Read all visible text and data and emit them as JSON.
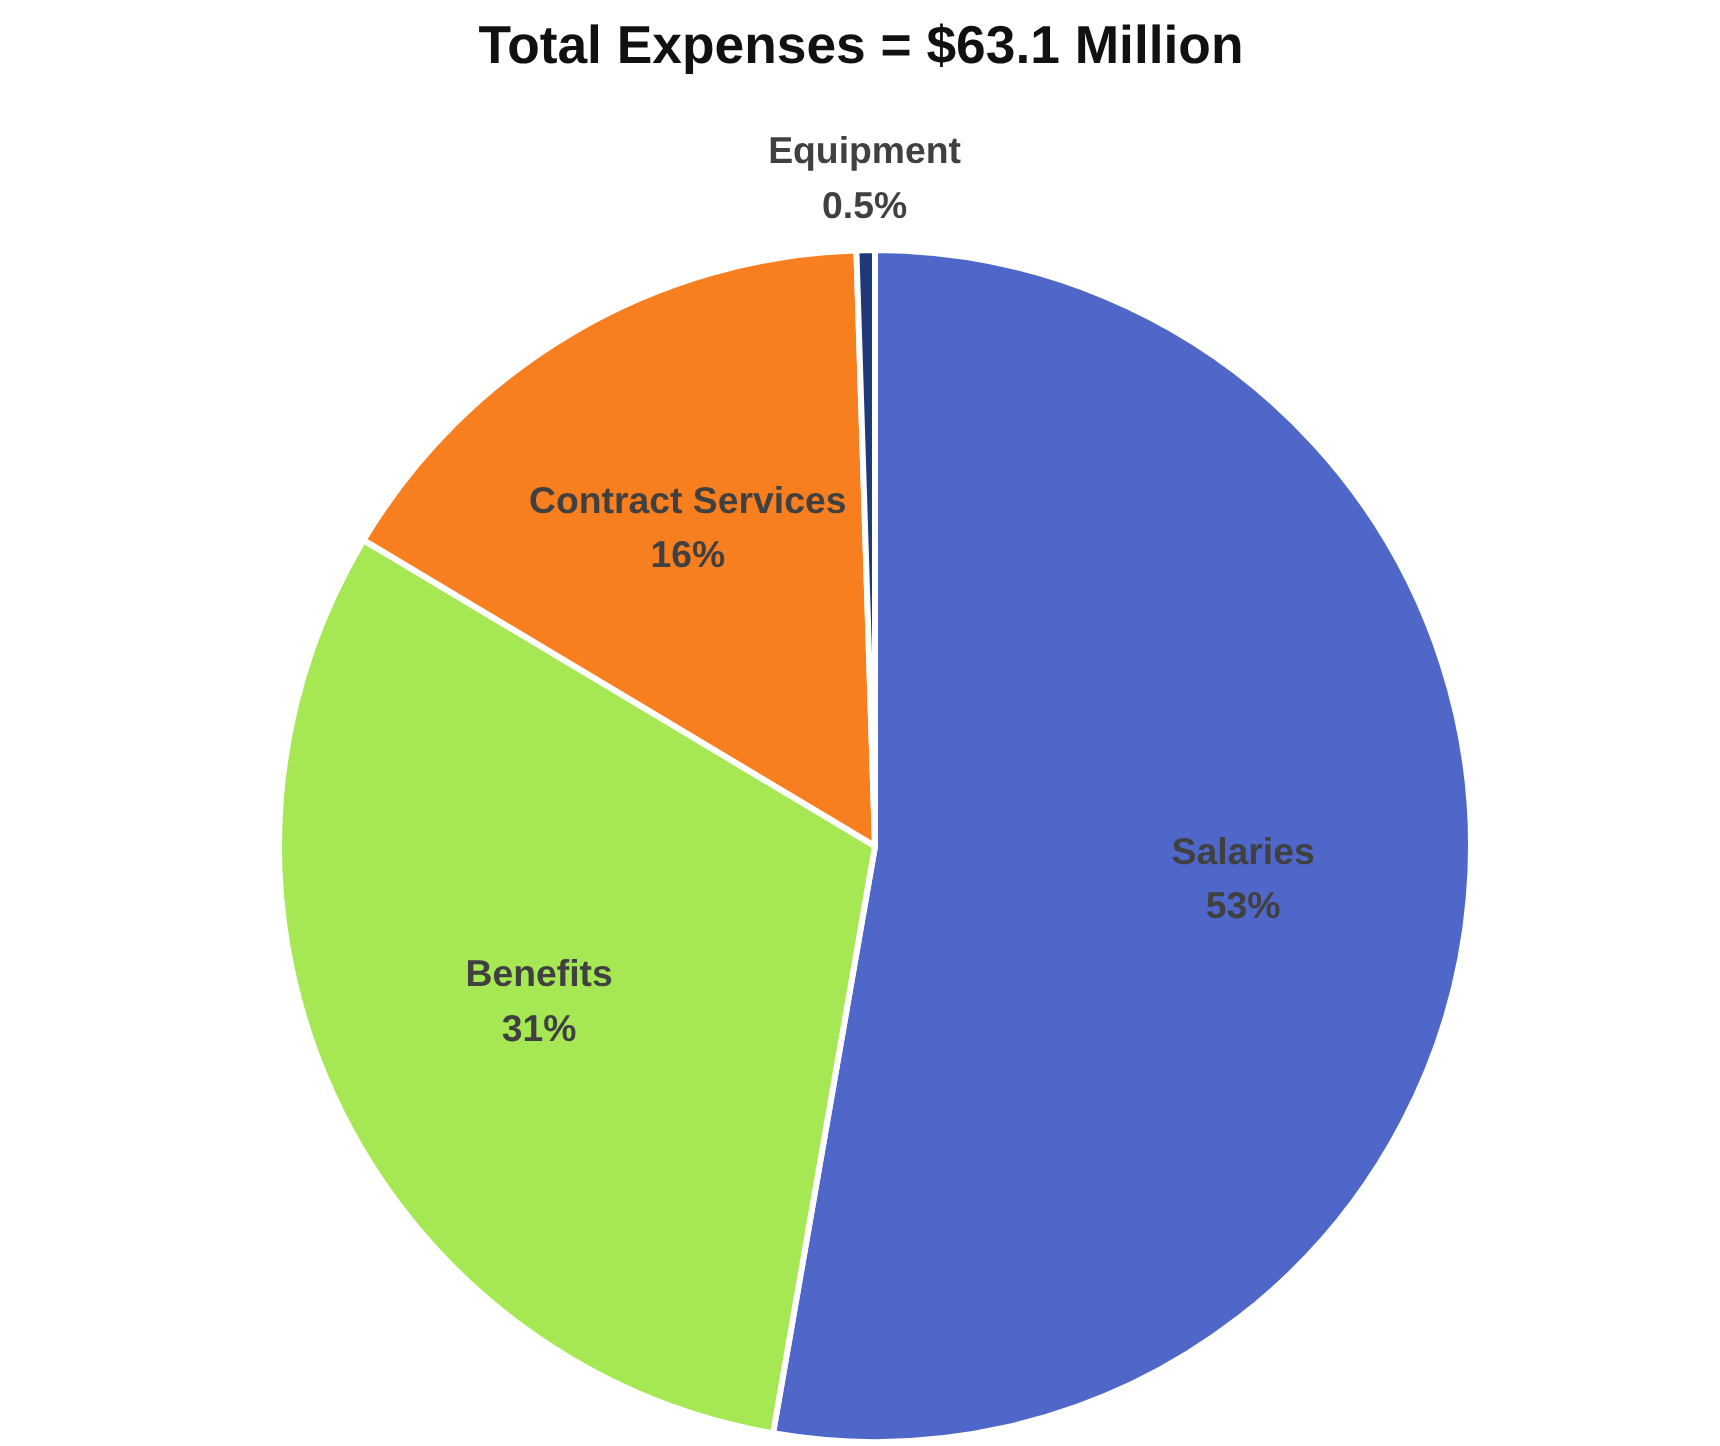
{
  "chart_data": {
    "type": "pie",
    "title": "Total Expenses = $63.1 Million",
    "categories": [
      "Salaries",
      "Benefits",
      "Contract Services",
      "Equipment"
    ],
    "values": [
      53,
      31,
      16,
      0.5
    ],
    "colors": [
      "#4f67c9",
      "#a6e853",
      "#f87f20",
      "#1f3a78"
    ],
    "value_labels": [
      "53%",
      "31%",
      "16%",
      "0.5%"
    ]
  }
}
